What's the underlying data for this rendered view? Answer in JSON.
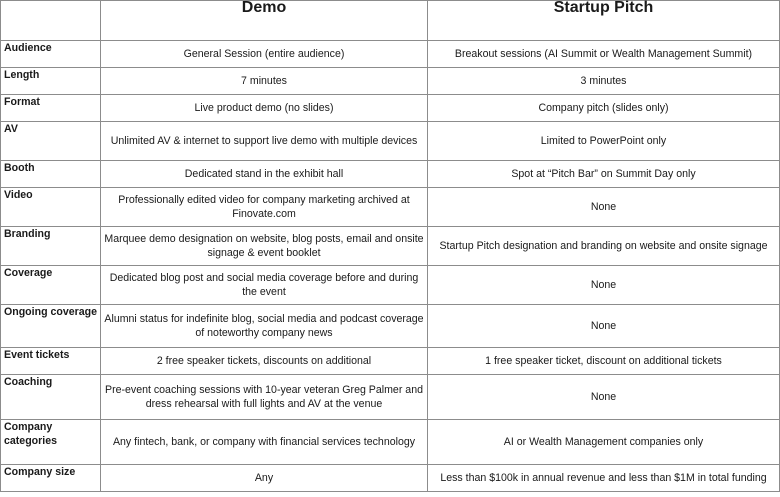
{
  "header": {
    "blank": "",
    "col1": "Demo",
    "col2": "Startup Pitch"
  },
  "rows": [
    {
      "label": "Audience",
      "demo": "General Session (entire audience)",
      "pitch": "Breakout sessions (AI Summit or Wealth Management Summit)"
    },
    {
      "label": "Length",
      "demo": "7 minutes",
      "pitch": "3 minutes"
    },
    {
      "label": "Format",
      "demo": "Live product demo (no slides)",
      "pitch": "Company pitch (slides only)"
    },
    {
      "label": "AV",
      "demo": "Unlimited AV & internet to support live demo with multiple devices",
      "pitch": "Limited to PowerPoint only"
    },
    {
      "label": "Booth",
      "demo": "Dedicated stand in the exhibit hall",
      "pitch": "Spot at “Pitch Bar” on Summit Day only"
    },
    {
      "label": "Video",
      "demo": "Professionally edited video for company marketing archived at Finovate.com",
      "pitch": "None"
    },
    {
      "label": "Branding",
      "demo": "Marquee demo designation on website, blog posts, email and onsite signage & event booklet",
      "pitch": "Startup Pitch designation and branding on website and onsite signage"
    },
    {
      "label": "Coverage",
      "demo": "Dedicated blog post and social media coverage before and during the event",
      "pitch": "None"
    },
    {
      "label": "Ongoing coverage",
      "demo": "Alumni status for indefinite blog, social media and podcast coverage of noteworthy company news",
      "pitch": "None"
    },
    {
      "label": "Event tickets",
      "demo": "2 free speaker tickets, discounts on additional",
      "pitch": "1 free speaker ticket, discount on additional tickets"
    },
    {
      "label": "Coaching",
      "demo": "Pre-event coaching sessions with 10-year veteran Greg Palmer and dress rehearsal with full lights and AV at the venue",
      "pitch": "None"
    },
    {
      "label": "Company categories",
      "demo": "Any fintech, bank, or company with financial services technology",
      "pitch": "AI or Wealth Management companies only"
    },
    {
      "label": "Company size",
      "demo": "Any",
      "pitch": "Less than $100k in annual revenue and less than $1M in total funding"
    }
  ]
}
